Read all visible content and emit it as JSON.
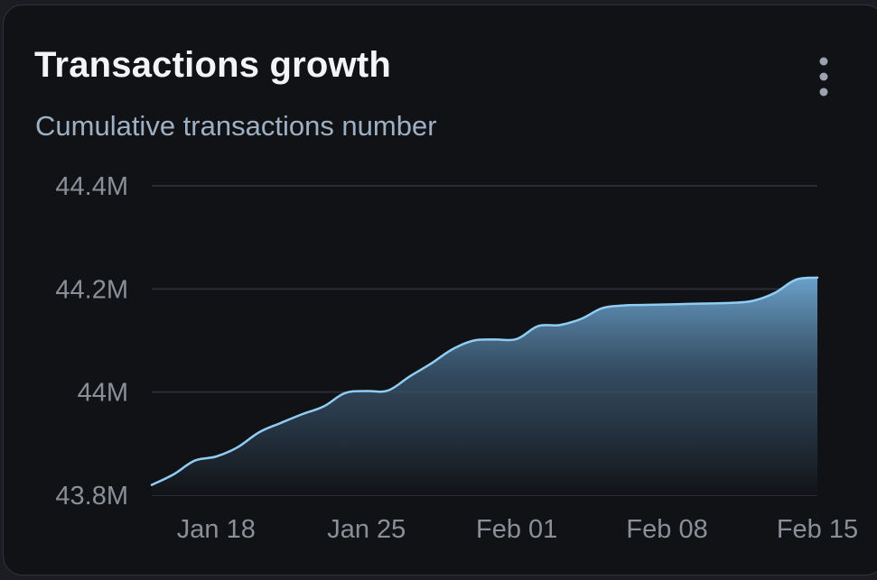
{
  "card": {
    "title": "Transactions growth",
    "subtitle": "Cumulative transactions number",
    "menu_icon": "more-vertical-icon"
  },
  "colors": {
    "background": "#111215",
    "line": "#90cdf4",
    "area_top": "#6fa8d4",
    "grid": "#2a2d33",
    "text_primary": "#f3f4f6",
    "text_secondary": "#9eb0c4",
    "axis_text": "#8a8f98"
  },
  "chart_data": {
    "type": "area",
    "title": "Transactions growth",
    "subtitle": "Cumulative transactions number",
    "x_tick_labels": [
      "Jan 18",
      "Jan 25",
      "Feb 01",
      "Feb 08",
      "Feb 15"
    ],
    "x_ticks": [
      "2024-01-18",
      "2024-01-25",
      "2024-02-01",
      "2024-02-08",
      "2024-02-15"
    ],
    "y_tick_labels": [
      "44.4M",
      "44.2M",
      "44M",
      "43.8M"
    ],
    "y_ticks": [
      44400000,
      44200000,
      44000000,
      43800000
    ],
    "ylim": [
      43800000,
      44400000
    ],
    "xlim": [
      "2024-01-15",
      "2024-02-15"
    ],
    "grid": true,
    "legend": "none",
    "series": [
      {
        "x": [
          "2024-01-15",
          "2024-01-16",
          "2024-01-17",
          "2024-01-18",
          "2024-01-19",
          "2024-01-20",
          "2024-01-21",
          "2024-01-22",
          "2024-01-23",
          "2024-01-24",
          "2024-01-25",
          "2024-01-26",
          "2024-01-27",
          "2024-01-28",
          "2024-01-29",
          "2024-01-30",
          "2024-01-31",
          "2024-02-01",
          "2024-02-02",
          "2024-02-03",
          "2024-02-04",
          "2024-02-05",
          "2024-02-06",
          "2024-02-07",
          "2024-02-08",
          "2024-02-09",
          "2024-02-10",
          "2024-02-11",
          "2024-02-12",
          "2024-02-13",
          "2024-02-14",
          "2024-02-15"
        ],
        "y": [
          43820000,
          43840000,
          43867000,
          43875000,
          43893000,
          43922000,
          43940000,
          43957000,
          43972000,
          43998000,
          44002000,
          44003000,
          44030000,
          44055000,
          44083000,
          44100000,
          44102000,
          44103000,
          44128000,
          44130000,
          44142000,
          44163000,
          44168000,
          44169000,
          44170000,
          44171000,
          44172000,
          44173000,
          44177000,
          44192000,
          44218000,
          44222000
        ]
      }
    ]
  }
}
